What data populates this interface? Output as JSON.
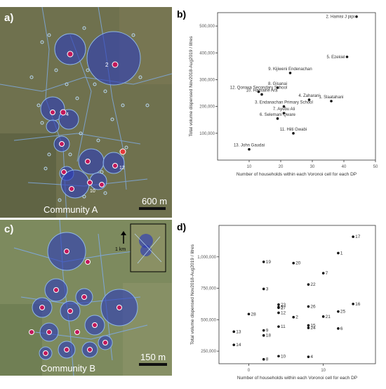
{
  "colors": {
    "map_a_bg": "#6b6f4a",
    "map_b_bg": "#7c8a5c",
    "voronoi_big": "#3340b8",
    "voronoi_edge": "#8fb7e6",
    "household": "#b9d8f2",
    "dp_marker": "#c2185b",
    "road": "#7fa7d9"
  },
  "map_a": {
    "panel_label": "a)",
    "caption": "Community A",
    "scalebar_label": "600 m",
    "dp_labels": [
      {
        "label": "2"
      },
      {
        "label": "4"
      },
      {
        "label": "12"
      },
      {
        "label": "10"
      }
    ]
  },
  "map_b": {
    "panel_label": "c)",
    "caption": "Community B",
    "scalebar_label": "150 m",
    "inset_label": "1 km"
  },
  "chart_data": [
    {
      "panel_label": "b)",
      "type": "scatter",
      "xlabel": "Number of households within each Voronoi cell for each DP",
      "ylabel": "Total volume dispensed Nov2018-Aug2019 / litres",
      "xlim": [
        0,
        50
      ],
      "ylim": [
        0,
        550000
      ],
      "x_ticks": [
        "10",
        "20",
        "30",
        "40",
        "50"
      ],
      "y_ticks": [
        "100,000",
        "200,000",
        "300,000",
        "400,000",
        "500,000"
      ],
      "x_tick_values": [
        10,
        20,
        30,
        40,
        50
      ],
      "y_tick_values": [
        100000,
        200000,
        300000,
        400000,
        500000
      ],
      "points": [
        {
          "label": "2. Hamisi J pipi",
          "x": 44,
          "y": 535000
        },
        {
          "label": "5. Ezekiel",
          "x": 41,
          "y": 385000
        },
        {
          "label": "9. Kijiweni Endenachan",
          "x": 23,
          "y": 325000
        },
        {
          "label": "8. Gisanai",
          "x": 19,
          "y": 270000
        },
        {
          "label": "12. Qorowa Secondary School",
          "x": 13,
          "y": 255000
        },
        {
          "label": "10. Hamaine Ara",
          "x": 14,
          "y": 245000
        },
        {
          "label": "4. Zaharani",
          "x": 29,
          "y": 225000
        },
        {
          "label": "1. Slaatahani",
          "x": 36,
          "y": 220000
        },
        {
          "label": "3. Endanachan Primary School",
          "x": 21,
          "y": 200000
        },
        {
          "label": "7. Ayubu Ali",
          "x": 21,
          "y": 175000
        },
        {
          "label": "6. Selemani Qware",
          "x": 19,
          "y": 155000
        },
        {
          "label": "11. Hiiti Gwabi",
          "x": 24,
          "y": 100000
        },
        {
          "label": "13. John Gaudai",
          "x": 10,
          "y": 40000
        }
      ]
    },
    {
      "panel_label": "d)",
      "type": "scatter",
      "xlabel": "Number of households within each Voronoi cell for each DP",
      "ylabel": "Total volume dispensed Nov2018-Aug2019 / litres",
      "xlim": [
        -4,
        17
      ],
      "ylim": [
        150000,
        1250000
      ],
      "x_ticks": [
        "0",
        "10"
      ],
      "y_ticks": [
        "250,000",
        "500,000",
        "750,000",
        "1,000,000"
      ],
      "x_tick_values": [
        0,
        10
      ],
      "y_tick_values": [
        250000,
        500000,
        750000,
        1000000
      ],
      "points": [
        {
          "label": "17",
          "x": 14,
          "y": 1160000
        },
        {
          "label": "1",
          "x": 12,
          "y": 1030000
        },
        {
          "label": "19",
          "x": 2,
          "y": 960000
        },
        {
          "label": "20",
          "x": 6,
          "y": 950000
        },
        {
          "label": "7",
          "x": 10,
          "y": 870000
        },
        {
          "label": "22",
          "x": 8,
          "y": 780000
        },
        {
          "label": "3",
          "x": 2,
          "y": 745000
        },
        {
          "label": "23",
          "x": 4,
          "y": 620000
        },
        {
          "label": "27",
          "x": 4,
          "y": 595000
        },
        {
          "label": "5",
          "x": 4,
          "y": 600000
        },
        {
          "label": "26",
          "x": 8,
          "y": 605000
        },
        {
          "label": "16",
          "x": 14,
          "y": 625000
        },
        {
          "label": "12",
          "x": 4,
          "y": 555000
        },
        {
          "label": "28",
          "x": 0,
          "y": 545000
        },
        {
          "label": "21",
          "x": 10,
          "y": 525000
        },
        {
          "label": "25",
          "x": 12,
          "y": 565000
        },
        {
          "label": "2",
          "x": 6,
          "y": 520000
        },
        {
          "label": "15",
          "x": 8,
          "y": 455000
        },
        {
          "label": "24",
          "x": 8,
          "y": 435000
        },
        {
          "label": "11",
          "x": 4,
          "y": 445000
        },
        {
          "label": "6",
          "x": 12,
          "y": 430000
        },
        {
          "label": "9",
          "x": 2,
          "y": 415000
        },
        {
          "label": "13",
          "x": -2,
          "y": 405000
        },
        {
          "label": "18",
          "x": 2,
          "y": 375000
        },
        {
          "label": "14",
          "x": -2,
          "y": 300000
        },
        {
          "label": "10",
          "x": 4,
          "y": 210000
        },
        {
          "label": "4",
          "x": 8,
          "y": 205000
        },
        {
          "label": "8",
          "x": 2,
          "y": 185000
        }
      ]
    }
  ]
}
